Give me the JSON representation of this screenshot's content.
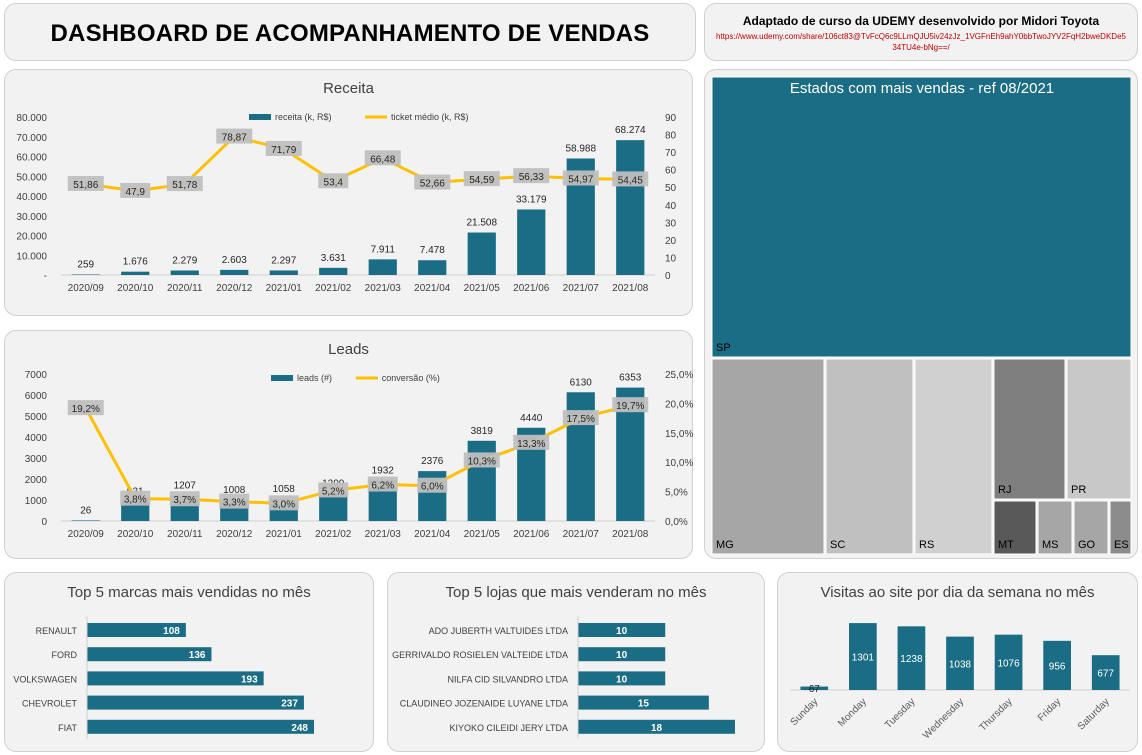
{
  "header": {
    "title": "DASHBOARD DE ACOMPANHAMENTO DE VENDAS",
    "credit": "Adaptado de curso da UDEMY desenvolvido por Midori Toyota",
    "url": "https://www.udemy.com/share/106ct83@TvFcQ6c9LLmQJU5iv24zJz_1VGFnEh9ahY0bbTwoJYV2FqH2bweDKDe534TU4e-bNg==/"
  },
  "colors": {
    "bar": "#1b6d85",
    "line": "#ffc000",
    "label_bg": "#bfbfbf",
    "panel": "#f2f2f2"
  },
  "chart_data": [
    {
      "id": "receita",
      "type": "bar+line",
      "title": "Receita",
      "categories": [
        "2020/09",
        "2020/10",
        "2020/11",
        "2020/12",
        "2021/01",
        "2021/02",
        "2021/03",
        "2021/04",
        "2021/05",
        "2021/06",
        "2021/07",
        "2021/08"
      ],
      "series": [
        {
          "name": "receita (k, R$)",
          "type": "bar",
          "axis": "left",
          "values": [
            259,
            1676,
            2279,
            2603,
            2297,
            3631,
            7911,
            7478,
            21508,
            33179,
            58988,
            68274
          ],
          "labels": [
            "259",
            "1.676",
            "2.279",
            "2.603",
            "2.297",
            "3.631",
            "7.911",
            "7.478",
            "21.508",
            "33.179",
            "58.988",
            "68.274"
          ]
        },
        {
          "name": "ticket médio (k, R$)",
          "type": "line",
          "axis": "right",
          "values": [
            51.86,
            47.9,
            51.78,
            78.87,
            71.79,
            53.4,
            66.48,
            52.66,
            54.59,
            56.33,
            54.97,
            54.45
          ],
          "labels": [
            "51,86",
            "47,9",
            "51,78",
            "78,87",
            "71,79",
            "53,4",
            "66,48",
            "52,66",
            "54,59",
            "56,33",
            "54,97",
            "54,45"
          ]
        }
      ],
      "ylim_left": [
        0,
        80000
      ],
      "yticks_left": [
        "-",
        "10.000",
        "20.000",
        "30.000",
        "40.000",
        "50.000",
        "60.000",
        "70.000",
        "80.000"
      ],
      "ylim_right": [
        0,
        90
      ],
      "yticks_right": [
        "0",
        "10",
        "20",
        "30",
        "40",
        "50",
        "60",
        "70",
        "80",
        "90"
      ],
      "legend": "top-center",
      "grid": false
    },
    {
      "id": "leads",
      "type": "bar+line",
      "title": "Leads",
      "categories": [
        "2020/09",
        "2020/10",
        "2020/11",
        "2020/12",
        "2021/01",
        "2021/02",
        "2021/03",
        "2021/04",
        "2021/05",
        "2021/06",
        "2021/07",
        "2021/08"
      ],
      "series": [
        {
          "name": "leads (#)",
          "type": "bar",
          "axis": "left",
          "values": [
            26,
            931,
            1207,
            1008,
            1058,
            1300,
            1932,
            2376,
            3819,
            4440,
            6130,
            6353
          ],
          "labels": [
            "26",
            "931",
            "1207",
            "1008",
            "1058",
            "1300",
            "1932",
            "2376",
            "3819",
            "4440",
            "6130",
            "6353"
          ]
        },
        {
          "name": "conversão (%)",
          "type": "line",
          "axis": "right",
          "values": [
            19.2,
            3.8,
            3.7,
            3.3,
            3.0,
            5.2,
            6.2,
            6.0,
            10.3,
            13.3,
            17.5,
            19.7
          ],
          "labels": [
            "19,2%",
            "3,8%",
            "3,7%",
            "3,3%",
            "3,0%",
            "5,2%",
            "6,2%",
            "6,0%",
            "10,3%",
            "13,3%",
            "17,5%",
            "19,7%"
          ]
        }
      ],
      "ylim_left": [
        0,
        7000
      ],
      "yticks_left": [
        "0",
        "1000",
        "2000",
        "3000",
        "4000",
        "5000",
        "6000",
        "7000"
      ],
      "ylim_right": [
        0,
        25
      ],
      "yticks_right": [
        "0,0%",
        "5,0%",
        "10,0%",
        "15,0%",
        "20,0%",
        "25,0%"
      ],
      "legend": "top-center",
      "grid": false
    },
    {
      "id": "treemap",
      "type": "treemap",
      "title": "Estados com mais vendas - ref 08/2021",
      "categories": [
        "SP",
        "MG",
        "SC",
        "RS",
        "RJ",
        "PR",
        "MT",
        "MS",
        "GO",
        "ES"
      ],
      "colors": [
        "#1b6d85",
        "#a6a6a6",
        "#c0c0c0",
        "#d0d0d0",
        "#7f7f7f",
        "#c8c8c8",
        "#595959",
        "#a6a6a6",
        "#a6a6a6",
        "#8c8c8c"
      ]
    },
    {
      "id": "brands",
      "type": "bar",
      "orientation": "horizontal",
      "title": "Top 5 marcas mais vendidas no mês",
      "categories": [
        "RENAULT",
        "FORD",
        "VOLKSWAGEN",
        "CHEVROLET",
        "FIAT"
      ],
      "values": [
        108,
        136,
        193,
        237,
        248
      ]
    },
    {
      "id": "stores",
      "type": "bar",
      "orientation": "horizontal",
      "title": "Top 5 lojas que mais venderam no mês",
      "categories": [
        "ADO JUBERTH VALTUIDES LTDA",
        "GERRIVALDO ROSIELEN VALTEIDE LTDA",
        "NILFA CID SILVANDRO LTDA",
        "CLAUDINEO JOZENAIDE LUYANE LTDA",
        "KIYOKO CILEIDI JERY LTDA"
      ],
      "values": [
        10,
        10,
        10,
        15,
        18
      ]
    },
    {
      "id": "visits",
      "type": "bar",
      "orientation": "vertical",
      "title": "Visitas ao site por dia da semana no mês",
      "categories": [
        "Sunday",
        "Monday",
        "Tuesday",
        "Wednesday",
        "Thursday",
        "Friday",
        "Saturday"
      ],
      "values": [
        67,
        1301,
        1238,
        1038,
        1076,
        956,
        677
      ]
    }
  ]
}
